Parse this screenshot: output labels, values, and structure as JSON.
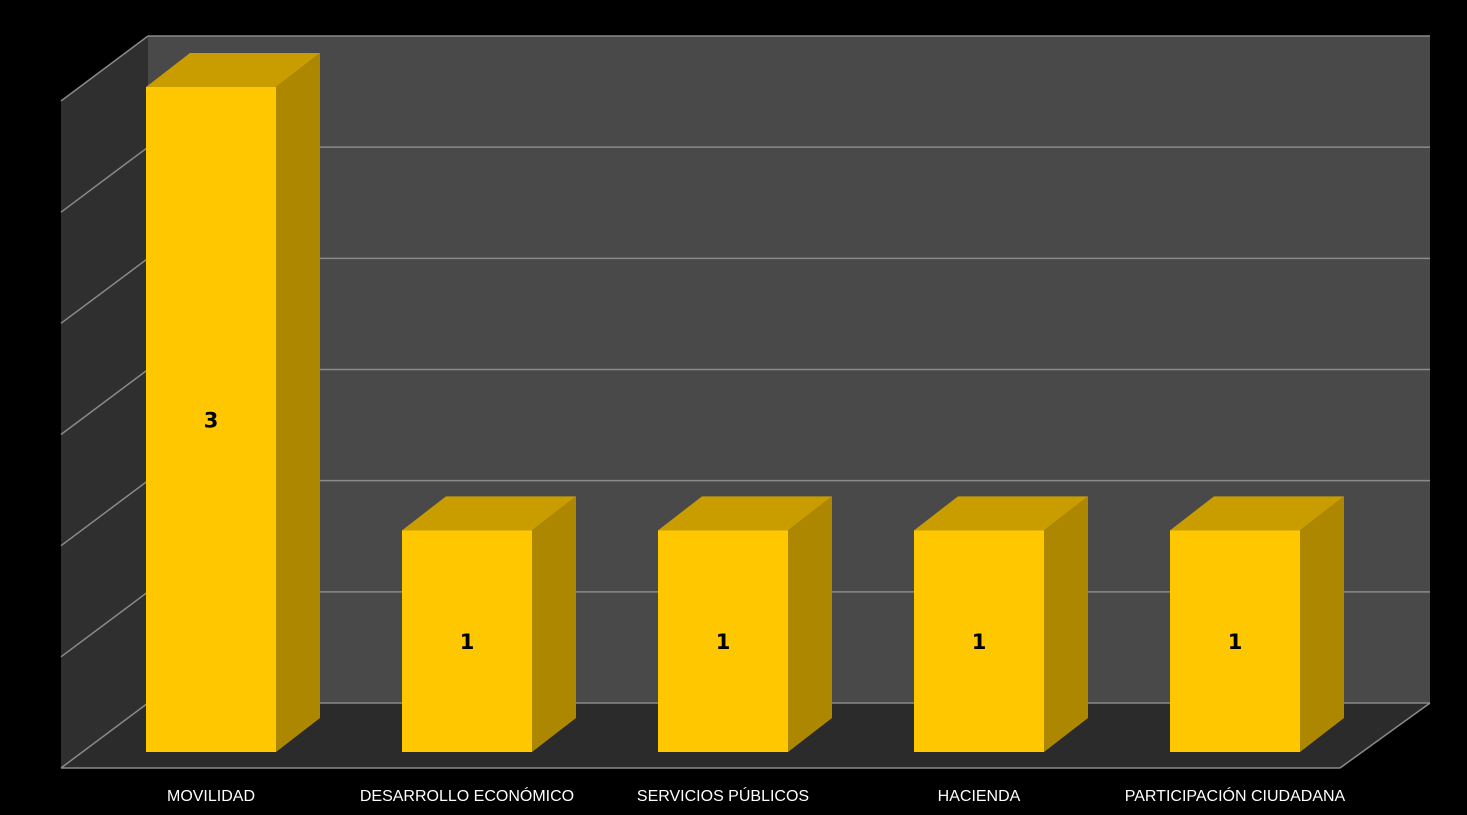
{
  "chart_data": {
    "type": "bar",
    "style": "3d-column",
    "categories": [
      "MOVILIDAD",
      "DESARROLLO ECONÓMICO",
      "SERVICIOS PÚBLICOS",
      "HACIENDA",
      "PARTICIPACIÓN CIUDADANA"
    ],
    "values": [
      3,
      1,
      1,
      1,
      1
    ],
    "data_labels": [
      "3",
      "1",
      "1",
      "1",
      "1"
    ],
    "ylim": [
      0,
      3
    ],
    "grid": true,
    "legend": "none",
    "colors": {
      "background": "#000000",
      "back_wall": "#494949",
      "side_wall": "#2f2f2f",
      "floor": "#2b2b2b",
      "gridline": "#8a8a8a",
      "bar_front": "#fec700",
      "bar_top": "#c99d00",
      "bar_side": "#ad8700",
      "category_text": "#ffffff",
      "value_text": "#000000"
    }
  }
}
